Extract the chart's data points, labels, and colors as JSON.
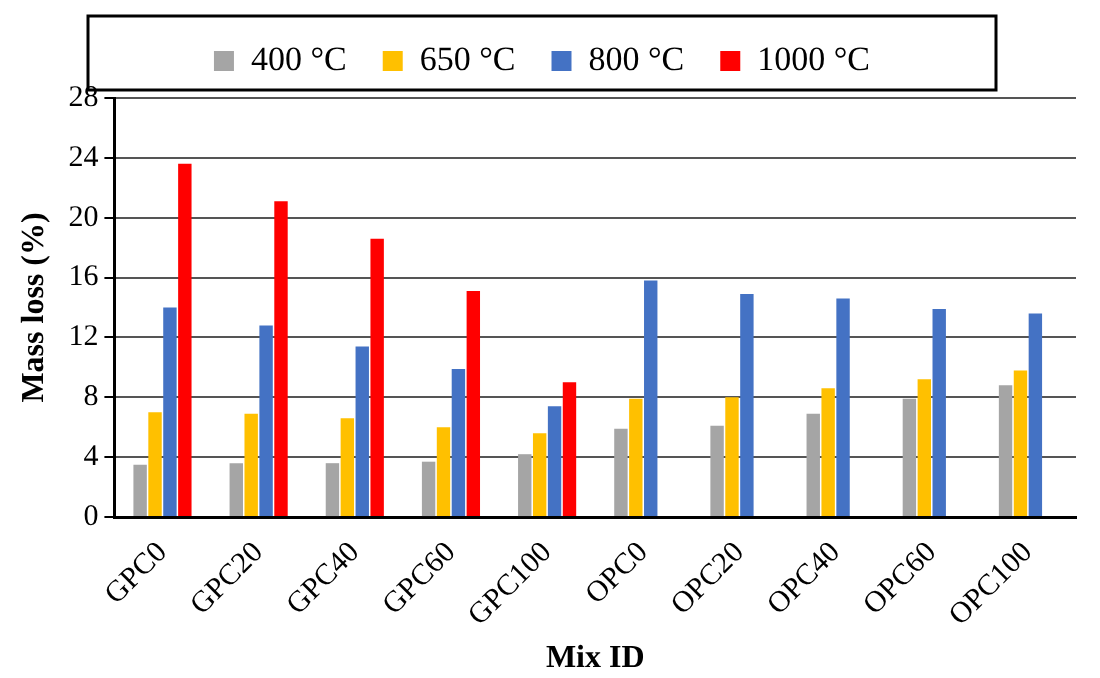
{
  "chart_data": {
    "type": "bar",
    "xlabel": "Mix ID",
    "ylabel": "Mass loss (%)",
    "categories": [
      "GPC0",
      "GPC20",
      "GPC40",
      "GPC60",
      "GPC100",
      "OPC0",
      "OPC20",
      "OPC40",
      "OPC60",
      "OPC100"
    ],
    "series": [
      {
        "name": "400 °C",
        "color": "#a5a5a5",
        "values": [
          3.5,
          3.6,
          3.6,
          3.7,
          4.2,
          5.9,
          6.1,
          6.9,
          7.9,
          8.8
        ]
      },
      {
        "name": "650 °C",
        "color": "#ffc000",
        "values": [
          7.0,
          6.9,
          6.6,
          6.0,
          5.6,
          7.9,
          8.0,
          8.6,
          9.2,
          9.8
        ]
      },
      {
        "name": "800 °C",
        "color": "#4472c4",
        "values": [
          14.0,
          12.8,
          11.4,
          9.9,
          7.4,
          15.8,
          14.9,
          14.6,
          13.9,
          13.6
        ]
      },
      {
        "name": "1000 °C",
        "color": "#ff0000",
        "values": [
          23.6,
          21.1,
          18.6,
          15.1,
          9.0,
          null,
          null,
          null,
          null,
          null
        ]
      }
    ],
    "ylim": [
      0,
      28
    ],
    "yticks": [
      0,
      4,
      8,
      12,
      16,
      20,
      24,
      28
    ],
    "grid": "y",
    "legend": "top"
  }
}
